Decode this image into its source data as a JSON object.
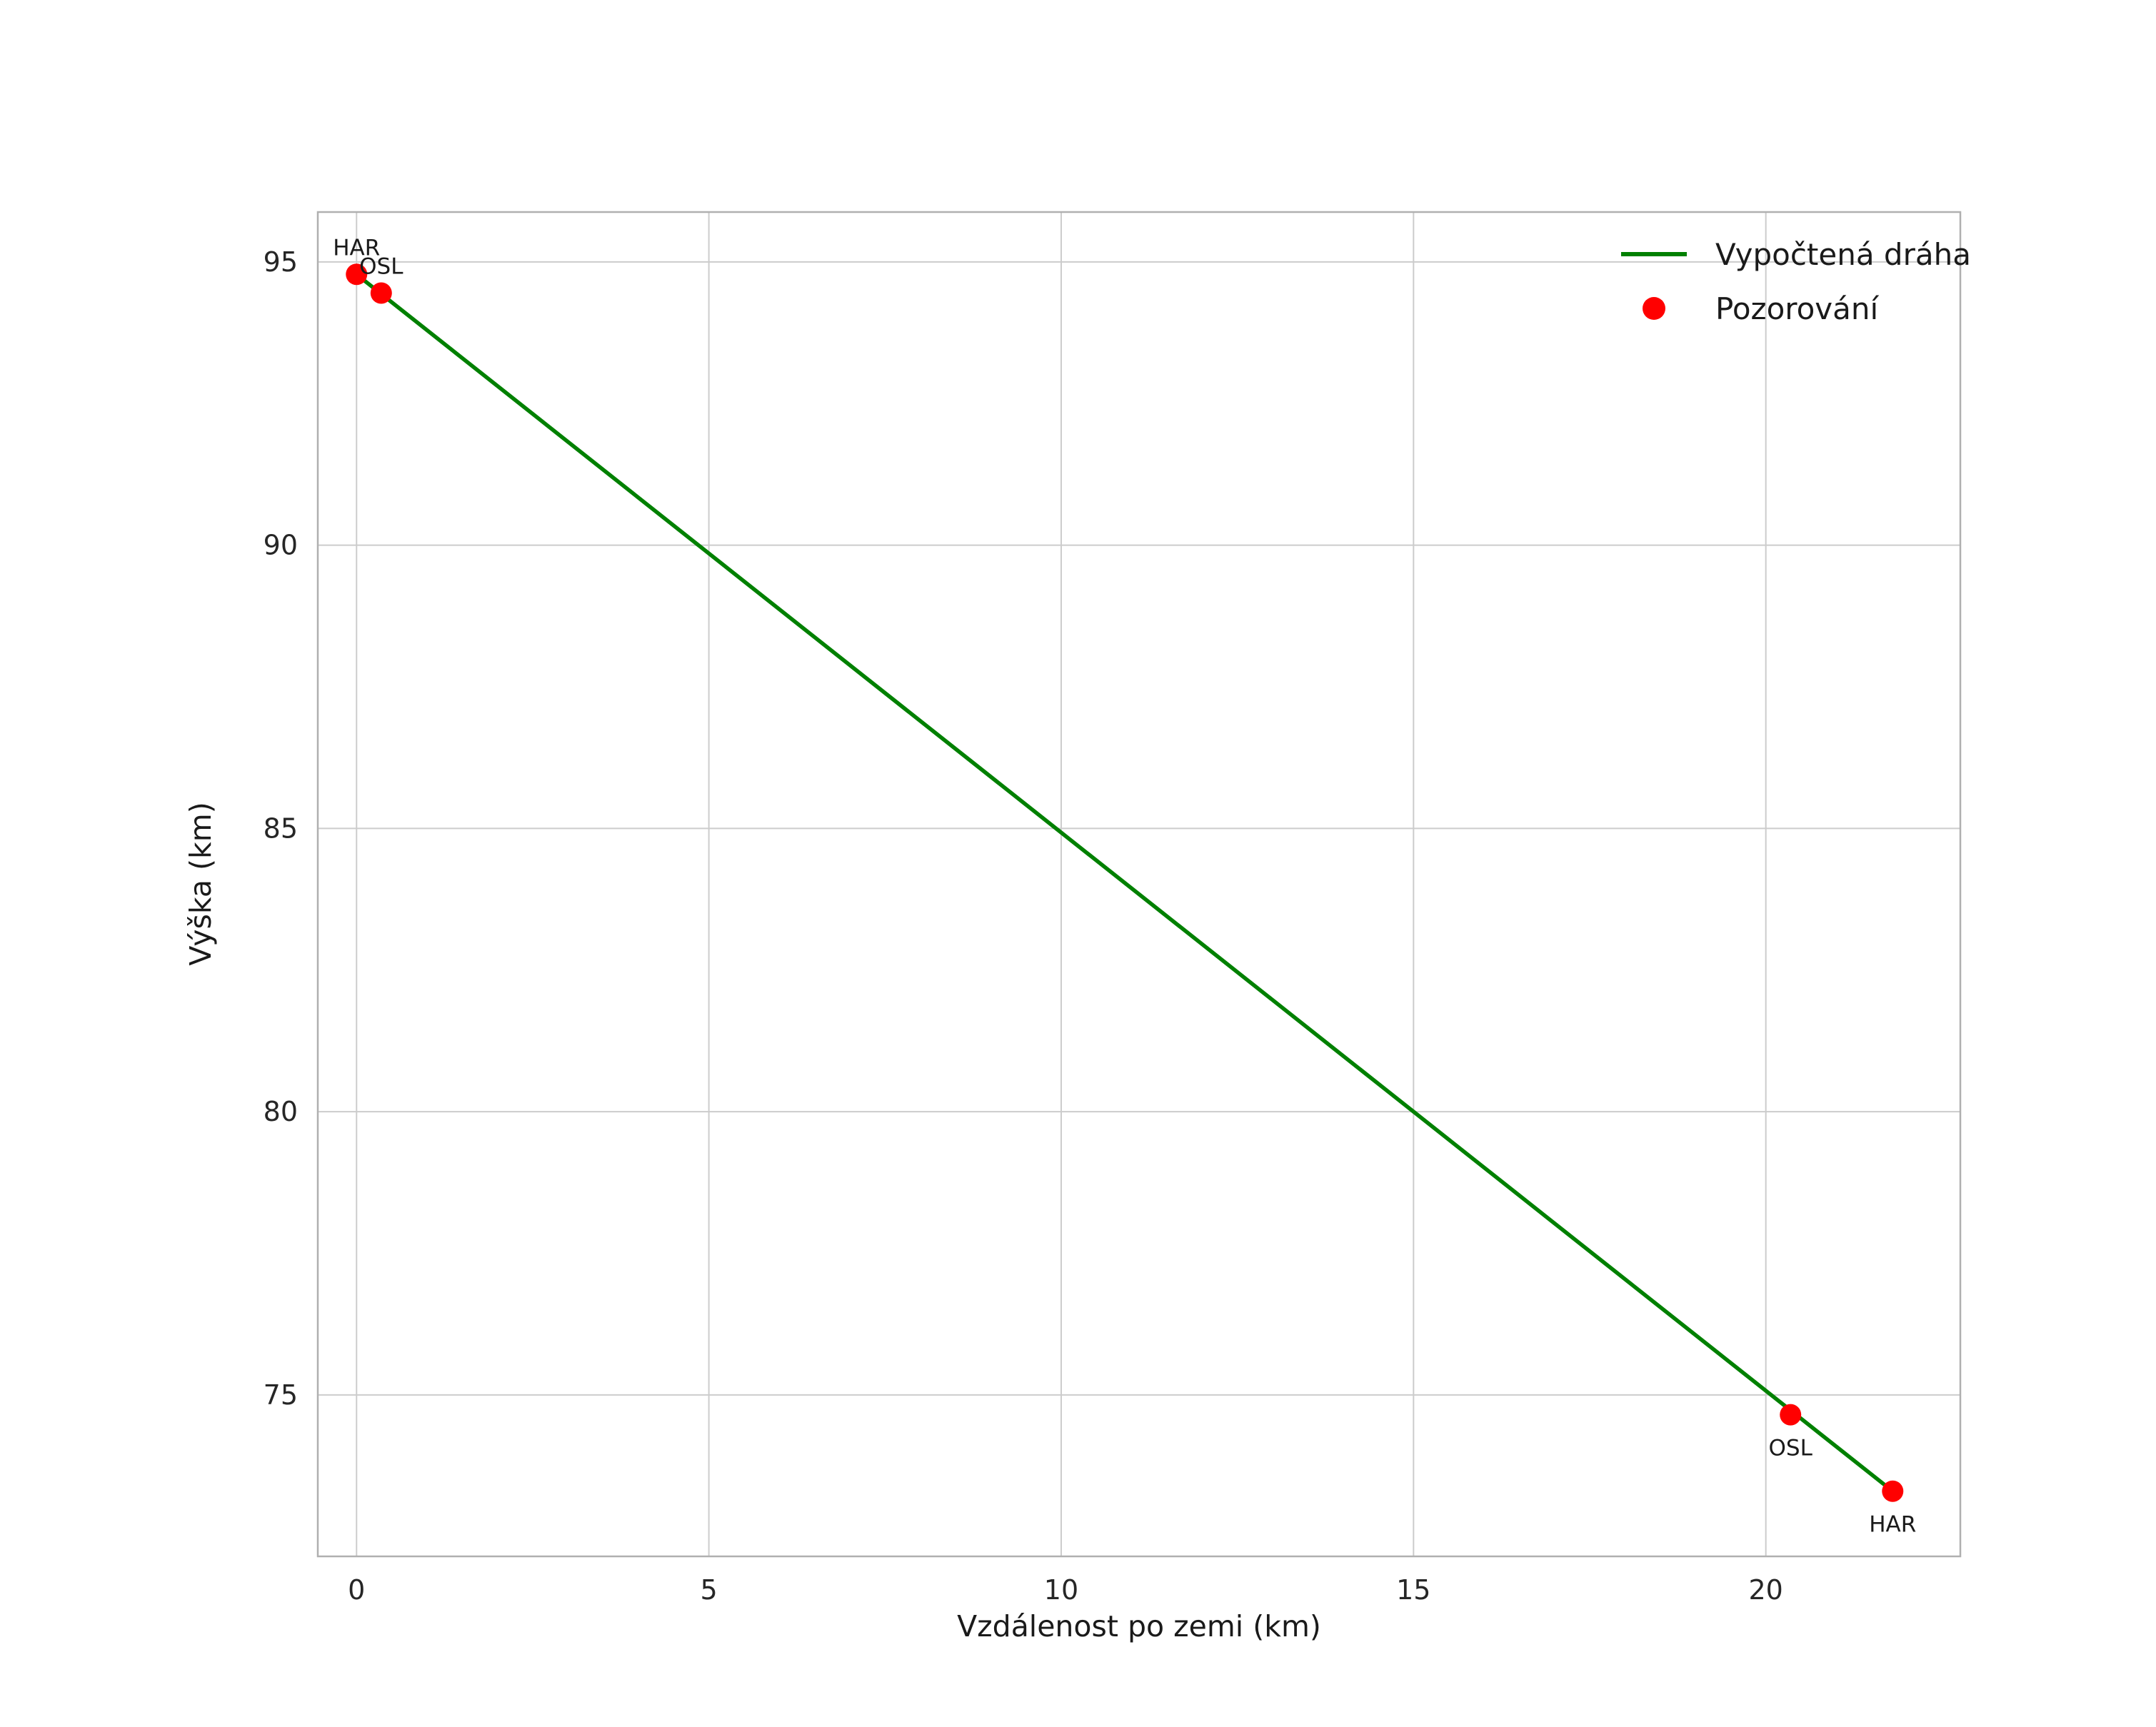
{
  "chart_data": {
    "type": "line",
    "title": "",
    "xlabel": "Vzdálenost po zemi (km)",
    "ylabel": "Výška (km)",
    "xlim": [
      -0.55,
      22.76
    ],
    "ylim": [
      72.15,
      95.88
    ],
    "xticks": [
      0,
      5,
      10,
      15,
      20
    ],
    "yticks": [
      75,
      80,
      85,
      90,
      95
    ],
    "grid": true,
    "legend_position": "upper right",
    "series": [
      {
        "name": "Vypočtená dráha",
        "type": "line",
        "color": "#008000",
        "x": [
          0.0,
          21.8
        ],
        "y": [
          94.78,
          73.3
        ]
      },
      {
        "name": "Pozorování",
        "type": "scatter",
        "color": "#ff0000",
        "points": [
          {
            "x": 0.0,
            "y": 94.78,
            "label": "HAR",
            "label_placement": "above"
          },
          {
            "x": 0.35,
            "y": 94.45,
            "label": "OSL",
            "label_placement": "above"
          },
          {
            "x": 20.35,
            "y": 74.65,
            "label": "OSL",
            "label_placement": "below"
          },
          {
            "x": 21.8,
            "y": 73.3,
            "label": "HAR",
            "label_placement": "below"
          }
        ]
      }
    ]
  }
}
